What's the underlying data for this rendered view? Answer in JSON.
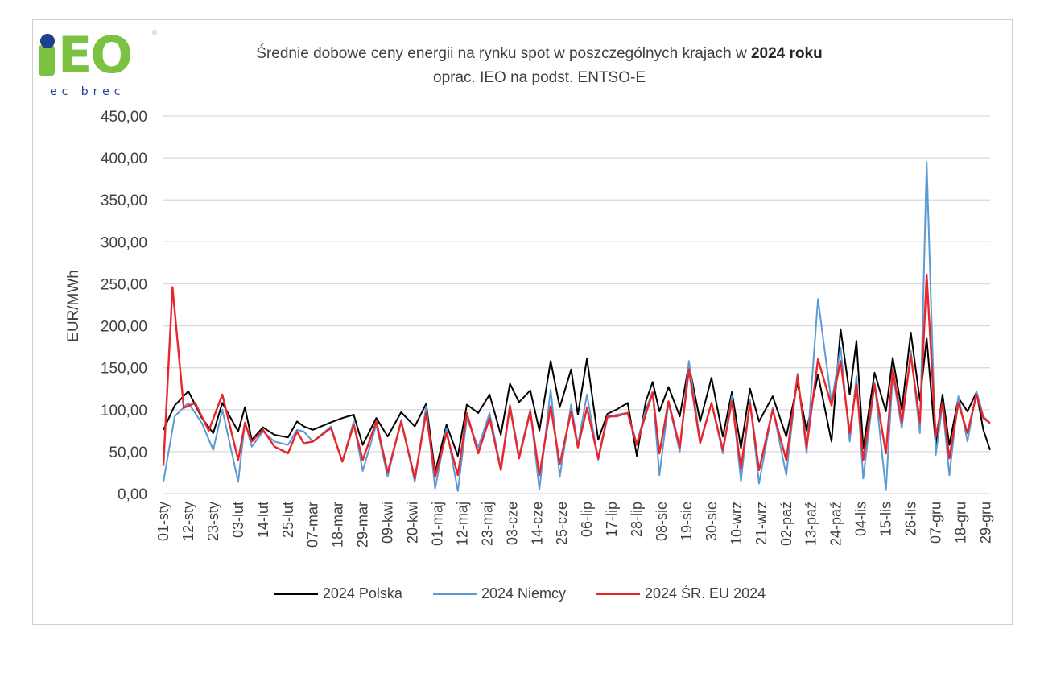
{
  "header": {
    "logo_text": "IEO",
    "logo_sub": "ec brec",
    "title_prefix": "Średnie dobowe ceny energii na rynku spot w poszczególnych krajach w ",
    "title_bold": "2024 roku",
    "subtitle": "oprac. IEO na podst. ENTSO-E"
  },
  "chart_data": {
    "type": "line",
    "title": "Średnie dobowe ceny energii na rynku spot w poszczególnych krajach w 2024 roku",
    "subtitle": "oprac. IEO na podst. ENTSO-E",
    "ylabel": "EUR/MWh",
    "xlabel": "",
    "ylim": [
      0,
      450
    ],
    "y_ticks": [
      "0,00",
      "50,00",
      "100,00",
      "150,00",
      "200,00",
      "250,00",
      "300,00",
      "350,00",
      "400,00",
      "450,00"
    ],
    "x_tick_labels": [
      "01-sty",
      "12-sty",
      "23-sty",
      "03-lut",
      "14-lut",
      "25-lut",
      "07-mar",
      "18-mar",
      "29-mar",
      "09-kwi",
      "20-kwi",
      "01-maj",
      "12-maj",
      "23-maj",
      "03-cze",
      "14-cze",
      "25-cze",
      "06-lip",
      "17-lip",
      "28-lip",
      "08-sie",
      "19-sie",
      "30-sie",
      "10-wrz",
      "21-wrz",
      "02-paź",
      "13-paź",
      "24-paź",
      "04-lis",
      "15-lis",
      "26-lis",
      "07-gru",
      "18-gru",
      "29-gru"
    ],
    "grid": true,
    "legend_position": "bottom",
    "series": [
      {
        "name": "2024 Polska",
        "color": "#000000",
        "x": [
          1,
          6,
          12,
          18,
          23,
          27,
          34,
          37,
          40,
          45,
          50,
          56,
          60,
          63,
          67,
          75,
          80,
          85,
          89,
          95,
          100,
          106,
          112,
          117,
          121,
          126,
          131,
          135,
          140,
          145,
          150,
          154,
          158,
          163,
          167,
          172,
          176,
          181,
          184,
          188,
          193,
          197,
          201,
          206,
          210,
          214,
          217,
          220,
          224,
          229,
          233,
          238,
          243,
          248,
          252,
          256,
          260,
          264,
          270,
          276,
          281,
          285,
          290,
          296,
          300,
          304,
          307,
          310,
          315,
          320,
          323,
          327,
          331,
          335,
          338,
          342,
          345,
          348,
          352,
          356,
          360,
          363,
          366
        ],
        "values": [
          76,
          105,
          122,
          90,
          72,
          108,
          74,
          103,
          64,
          79,
          70,
          67,
          86,
          80,
          76,
          85,
          90,
          94,
          58,
          90,
          68,
          97,
          80,
          107,
          25,
          82,
          45,
          106,
          96,
          118,
          70,
          131,
          109,
          123,
          75,
          158,
          103,
          148,
          94,
          161,
          64,
          95,
          100,
          108,
          45,
          110,
          133,
          98,
          127,
          92,
          154,
          86,
          138,
          68,
          121,
          54,
          125,
          86,
          116,
          68,
          132,
          75,
          142,
          62,
          196,
          118,
          182,
          54,
          144,
          98,
          162,
          100,
          192,
          111,
          185,
          57,
          118,
          58,
          114,
          98,
          121,
          76,
          52
        ]
      },
      {
        "name": "2024 Niemcy",
        "color": "#5b9bd5",
        "x": [
          1,
          6,
          12,
          18,
          23,
          27,
          34,
          37,
          40,
          45,
          50,
          56,
          60,
          63,
          67,
          75,
          80,
          85,
          89,
          95,
          100,
          106,
          112,
          117,
          121,
          126,
          131,
          135,
          140,
          145,
          150,
          154,
          158,
          163,
          167,
          172,
          176,
          181,
          184,
          188,
          193,
          197,
          201,
          206,
          210,
          214,
          217,
          220,
          224,
          229,
          233,
          238,
          243,
          248,
          252,
          256,
          260,
          264,
          270,
          276,
          281,
          285,
          290,
          296,
          300,
          304,
          307,
          310,
          315,
          320,
          323,
          327,
          331,
          335,
          338,
          342,
          345,
          348,
          352,
          356,
          360,
          363,
          366
        ],
        "values": [
          14,
          92,
          108,
          84,
          52,
          100,
          14,
          85,
          56,
          74,
          62,
          58,
          76,
          74,
          62,
          80,
          38,
          86,
          27,
          82,
          20,
          88,
          14,
          104,
          6,
          78,
          3,
          90,
          55,
          96,
          30,
          106,
          45,
          100,
          5,
          124,
          20,
          106,
          58,
          118,
          40,
          90,
          94,
          96,
          60,
          100,
          122,
          22,
          108,
          50,
          158,
          62,
          108,
          48,
          116,
          15,
          112,
          12,
          102,
          22,
          143,
          48,
          232,
          108,
          174,
          62,
          140,
          18,
          132,
          4,
          142,
          78,
          170,
          72,
          395,
          46,
          106,
          22,
          116,
          62,
          122,
          92,
          84
        ]
      },
      {
        "name": "2024 ŚR. EU 2024",
        "color": "#e8262c",
        "x": [
          1,
          5,
          10,
          15,
          21,
          27,
          34,
          37,
          40,
          45,
          50,
          56,
          60,
          63,
          67,
          75,
          80,
          85,
          89,
          95,
          100,
          106,
          112,
          117,
          121,
          126,
          131,
          135,
          140,
          145,
          150,
          154,
          158,
          163,
          167,
          172,
          176,
          181,
          184,
          188,
          193,
          197,
          201,
          206,
          210,
          214,
          217,
          220,
          224,
          229,
          233,
          238,
          243,
          248,
          252,
          256,
          260,
          264,
          270,
          276,
          281,
          285,
          290,
          296,
          300,
          304,
          307,
          310,
          315,
          320,
          323,
          327,
          331,
          335,
          338,
          342,
          345,
          348,
          352,
          356,
          360,
          363,
          366
        ],
        "values": [
          33,
          246,
          102,
          108,
          75,
          118,
          40,
          84,
          62,
          76,
          56,
          48,
          74,
          60,
          62,
          78,
          38,
          82,
          40,
          86,
          25,
          86,
          18,
          96,
          20,
          72,
          22,
          96,
          48,
          90,
          28,
          104,
          42,
          98,
          22,
          104,
          35,
          98,
          55,
          102,
          42,
          92,
          92,
          96,
          58,
          95,
          120,
          48,
          110,
          55,
          148,
          60,
          108,
          52,
          110,
          30,
          108,
          28,
          100,
          40,
          140,
          55,
          160,
          105,
          158,
          72,
          130,
          40,
          130,
          48,
          148,
          85,
          165,
          85,
          261,
          68,
          108,
          42,
          108,
          72,
          118,
          90,
          84
        ]
      }
    ]
  }
}
